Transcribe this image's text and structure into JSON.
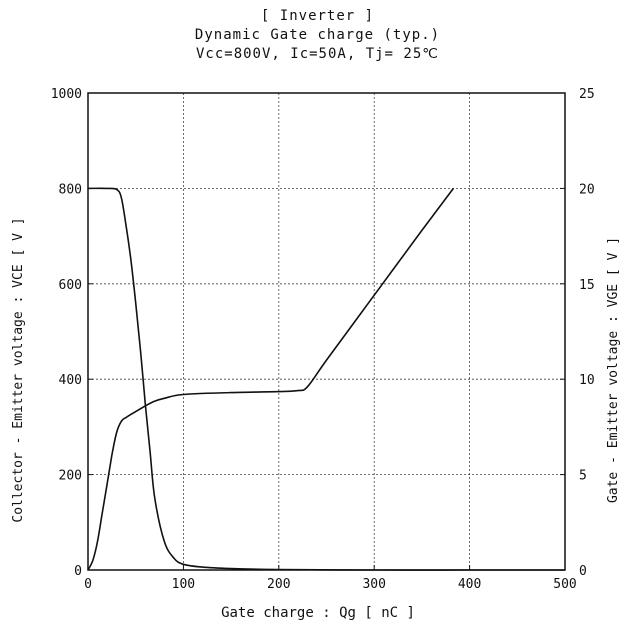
{
  "chart_data": {
    "type": "line",
    "title": "[ Inverter ]",
    "subtitle": "Dynamic Gate charge  (typ.)",
    "conditions": "Vcc=800V,  Ic=50A,  Tj= 25℃",
    "xlabel": "Gate charge  :  Qg  [ nC ]",
    "ylabel_left": "Collector - Emitter voltage  :  VCE  [ V ]",
    "ylabel_right": "Gate - Emitter voltage  :  VGE  [ V ]",
    "xlim": [
      0,
      500
    ],
    "ylim_left": [
      0,
      1000
    ],
    "ylim_right": [
      0,
      25
    ],
    "x_ticks": [
      "0",
      "100",
      "200",
      "300",
      "400",
      "500"
    ],
    "y_left_ticks": [
      "0",
      "200",
      "400",
      "600",
      "800",
      "1000"
    ],
    "y_right_ticks": [
      "0",
      "5",
      "10",
      "15",
      "20",
      "25"
    ],
    "grid": true,
    "series": [
      {
        "axis": "left",
        "color": "#111111",
        "x": [
          0,
          20,
          30,
          35,
          40,
          45,
          50,
          55,
          60,
          65,
          70,
          80,
          90,
          100,
          120,
          150,
          200,
          300,
          400,
          500
        ],
        "y": [
          800,
          800,
          798,
          780,
          720,
          650,
          560,
          460,
          350,
          250,
          150,
          60,
          25,
          12,
          6,
          3,
          1,
          0,
          0,
          0
        ]
      },
      {
        "axis": "right",
        "color": "#111111",
        "x": [
          0,
          5,
          10,
          15,
          20,
          25,
          30,
          35,
          40,
          50,
          60,
          70,
          80,
          100,
          150,
          200,
          220,
          230,
          250,
          300,
          350,
          383
        ],
        "y": [
          0,
          0.5,
          1.5,
          3.0,
          4.5,
          6.0,
          7.2,
          7.8,
          8.0,
          8.3,
          8.6,
          8.85,
          9.0,
          9.2,
          9.3,
          9.35,
          9.4,
          9.6,
          11.0,
          14.4,
          17.8,
          20.0
        ]
      }
    ]
  }
}
